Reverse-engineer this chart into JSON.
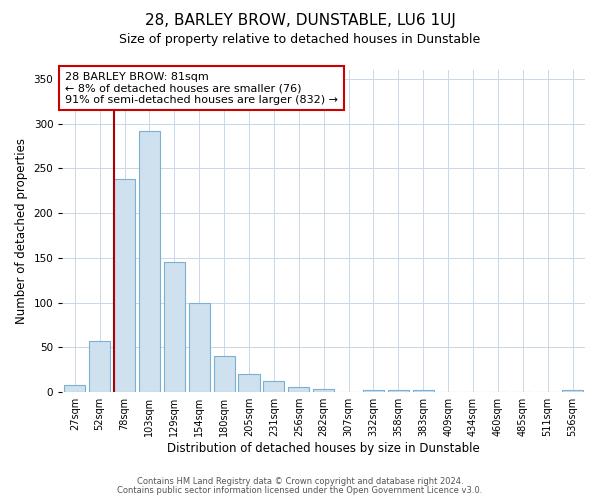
{
  "title": "28, BARLEY BROW, DUNSTABLE, LU6 1UJ",
  "subtitle": "Size of property relative to detached houses in Dunstable",
  "xlabel": "Distribution of detached houses by size in Dunstable",
  "ylabel": "Number of detached properties",
  "bar_labels": [
    "27sqm",
    "52sqm",
    "78sqm",
    "103sqm",
    "129sqm",
    "154sqm",
    "180sqm",
    "205sqm",
    "231sqm",
    "256sqm",
    "282sqm",
    "307sqm",
    "332sqm",
    "358sqm",
    "383sqm",
    "409sqm",
    "434sqm",
    "460sqm",
    "485sqm",
    "511sqm",
    "536sqm"
  ],
  "bar_values": [
    8,
    57,
    238,
    292,
    146,
    100,
    41,
    20,
    12,
    6,
    4,
    0,
    3,
    2,
    2,
    0,
    0,
    0,
    0,
    0,
    2
  ],
  "bar_fill_color": "#cfe0ef",
  "bar_edge_color": "#7bafd4",
  "vline_color": "#aa0000",
  "vline_x_index": 2,
  "ylim": [
    0,
    360
  ],
  "yticks": [
    0,
    50,
    100,
    150,
    200,
    250,
    300,
    350
  ],
  "annotation_lines": [
    "28 BARLEY BROW: 81sqm",
    "← 8% of detached houses are smaller (76)",
    "91% of semi-detached houses are larger (832) →"
  ],
  "footer_line1": "Contains HM Land Registry data © Crown copyright and database right 2024.",
  "footer_line2": "Contains public sector information licensed under the Open Government Licence v3.0.",
  "background_color": "#ffffff",
  "grid_color": "#c8d8e8",
  "title_fontsize": 11,
  "subtitle_fontsize": 9,
  "ylabel_fontsize": 8.5,
  "xlabel_fontsize": 8.5,
  "tick_fontsize": 7,
  "footer_fontsize": 6,
  "annot_fontsize": 8
}
